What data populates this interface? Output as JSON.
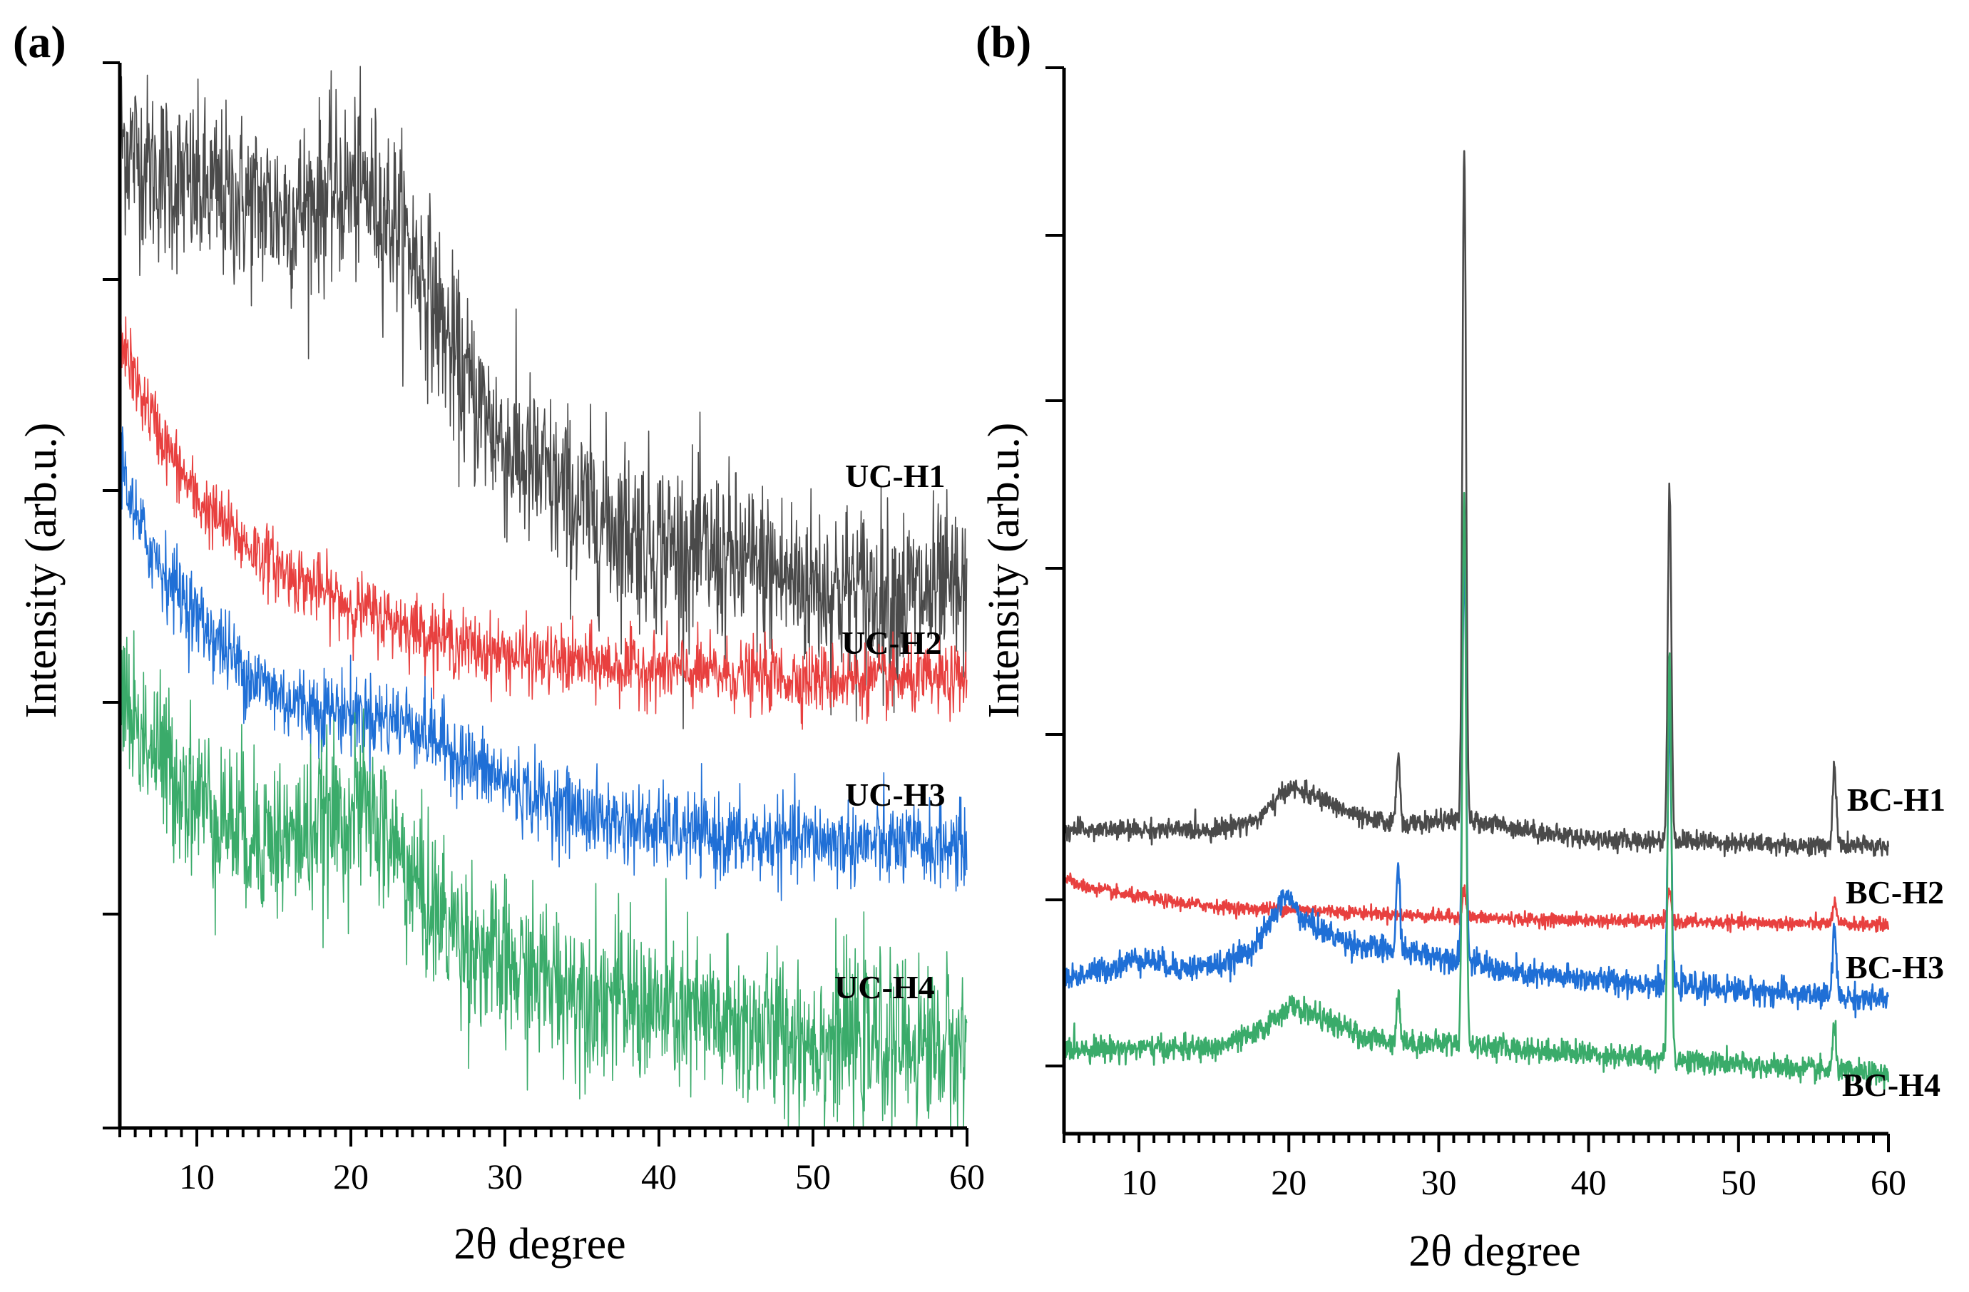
{
  "chart_data": [
    {
      "type": "line",
      "panel_label": "(a)",
      "xlabel": "2θ degree",
      "ylabel": "Intensity (arb.u.)",
      "xlim": [
        5,
        60
      ],
      "ylim": [
        0,
        100
      ],
      "x_ticks": [
        "10",
        "20",
        "30",
        "40",
        "50",
        "60"
      ],
      "series": [
        {
          "name": "UC-H1",
          "color": "#4a4a4a",
          "x": [
            5,
            7,
            10,
            13,
            16,
            19,
            21,
            23,
            25,
            27,
            30,
            35,
            40,
            45,
            50,
            55,
            60
          ],
          "values": [
            93,
            90,
            88,
            87,
            86,
            88,
            88,
            85,
            79,
            71,
            64,
            58,
            55,
            53,
            51,
            50,
            50
          ],
          "noise": 4.2
        },
        {
          "name": "UC-H2",
          "color": "#e8403f",
          "x": [
            5,
            6,
            8,
            10,
            13,
            16,
            20,
            24,
            28,
            32,
            36,
            40,
            45,
            50,
            55,
            60
          ],
          "values": [
            75,
            70,
            64,
            59,
            55,
            52,
            49,
            47,
            45,
            44,
            43.5,
            43,
            42.5,
            42.2,
            42,
            42
          ],
          "noise": 1.6
        },
        {
          "name": "UC-H3",
          "color": "#1f6fd6",
          "x": [
            5,
            6,
            8,
            10,
            13,
            16,
            20,
            24,
            28,
            32,
            36,
            40,
            45,
            50,
            55,
            60
          ],
          "values": [
            64,
            57,
            52,
            48,
            43,
            40,
            39,
            38,
            34,
            31,
            29,
            28,
            27,
            27,
            26.5,
            26.5
          ],
          "noise": 1.9
        },
        {
          "name": "UC-H4",
          "color": "#3aab6a",
          "x": [
            5,
            6,
            8,
            10,
            13,
            16,
            19,
            21,
            23,
            25,
            28,
            30,
            35,
            40,
            45,
            50,
            55,
            60
          ],
          "values": [
            42,
            38,
            34,
            31,
            28,
            27,
            29,
            30,
            26,
            21,
            17,
            15,
            13,
            11,
            9.5,
            8.5,
            8,
            7.5
          ],
          "noise": 3.8
        }
      ],
      "series_labels": [
        "UC-H1",
        "UC-H2",
        "UC-H3",
        "UC-H4"
      ]
    },
    {
      "type": "line",
      "panel_label": "(b)",
      "xlabel": "2θ degree",
      "ylabel": "Intensity (arb.u.)",
      "xlim": [
        5,
        60
      ],
      "ylim": [
        0,
        100
      ],
      "x_ticks": [
        "10",
        "20",
        "30",
        "40",
        "50",
        "60"
      ],
      "peaks_2theta": [
        27.3,
        31.7,
        45.4,
        56.4
      ],
      "series": [
        {
          "name": "BC-H1",
          "color": "#4a4a4a",
          "x": [
            5,
            10,
            15,
            18,
            20,
            22,
            25,
            28,
            31,
            34,
            38,
            42,
            46,
            50,
            55,
            60
          ],
          "values": [
            28.5,
            28.5,
            28.5,
            29.5,
            32.5,
            31.5,
            29.5,
            29,
            29.5,
            29,
            28,
            27.5,
            27.5,
            27.3,
            27,
            27
          ],
          "peaks": [
            {
              "x": 27.3,
              "h": 6.5
            },
            {
              "x": 31.7,
              "h": 63
            },
            {
              "x": 45.4,
              "h": 33
            },
            {
              "x": 56.4,
              "h": 7.5
            }
          ],
          "noise": 0.45
        },
        {
          "name": "BC-H2",
          "color": "#e8403f",
          "x": [
            5,
            6,
            8,
            10,
            13,
            17,
            20,
            24,
            28,
            32,
            36,
            40,
            45,
            50,
            55,
            60
          ],
          "values": [
            24,
            23.3,
            22.7,
            22.2,
            21.6,
            21.1,
            21.1,
            20.8,
            20.5,
            20.3,
            20.1,
            20,
            19.9,
            19.8,
            19.7,
            19.6
          ],
          "peaks": [
            {
              "x": 31.7,
              "h": 2.6
            },
            {
              "x": 45.4,
              "h": 3
            },
            {
              "x": 56.4,
              "h": 2
            }
          ],
          "noise": 0.3
        },
        {
          "name": "BC-H3",
          "color": "#1f6fd6",
          "x": [
            5,
            8,
            10,
            13,
            16,
            18,
            19.8,
            21,
            23,
            25,
            28,
            31,
            35,
            40,
            45,
            50,
            55,
            60
          ],
          "values": [
            14.5,
            15.5,
            16.5,
            15.5,
            16,
            18,
            22.5,
            20,
            18.5,
            17.5,
            17,
            16.5,
            15,
            14.5,
            14,
            13.5,
            13,
            12.5
          ],
          "peaks": [
            {
              "x": 27.3,
              "h": 8
            },
            {
              "x": 31.7,
              "h": 39
            },
            {
              "x": 45.4,
              "h": 25
            },
            {
              "x": 56.4,
              "h": 6.5
            }
          ],
          "noise": 0.6
        },
        {
          "name": "BC-H4",
          "color": "#3aab6a",
          "x": [
            5,
            10,
            15,
            18,
            20,
            22,
            25,
            28,
            31,
            35,
            40,
            45,
            50,
            55,
            60
          ],
          "values": [
            8,
            8,
            8,
            9.5,
            12,
            11,
            9,
            8.5,
            8.5,
            8,
            7.5,
            7,
            6.5,
            6,
            5.5
          ],
          "peaks": [
            {
              "x": 27.3,
              "h": 4.5
            },
            {
              "x": 31.7,
              "h": 52
            },
            {
              "x": 45.4,
              "h": 38
            },
            {
              "x": 56.4,
              "h": 4
            }
          ],
          "noise": 0.55
        }
      ],
      "series_labels": [
        "BC-H1",
        "BC-H2",
        "BC-H3",
        "BC-H4"
      ]
    }
  ]
}
